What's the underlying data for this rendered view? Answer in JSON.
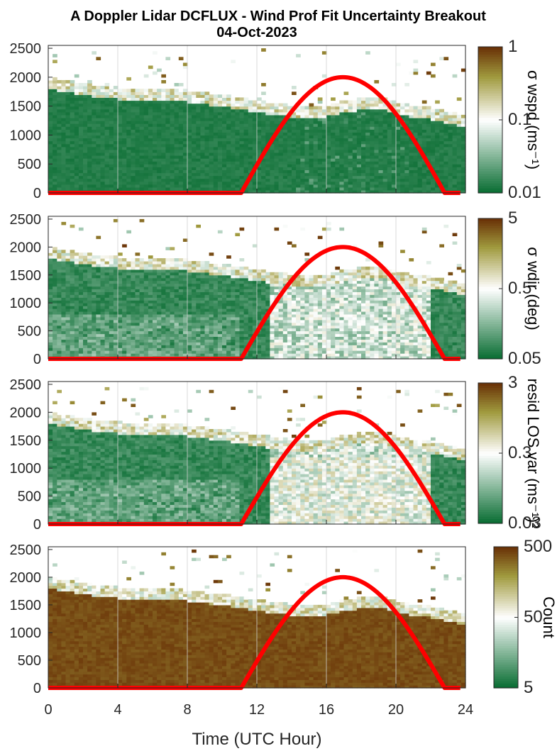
{
  "figure": {
    "title": "A Doppler Lidar DCFLUX - Wind Prof Fit Uncertainty Breakout",
    "subtitle": "04-Oct-2023",
    "xlabel": "Time (UTC Hour)",
    "xticks": [
      "0",
      "4",
      "8",
      "12",
      "16",
      "20",
      "24"
    ]
  },
  "colors": {
    "green_dark": "#0b6e34",
    "white": "#ffffff",
    "olive": "#a09a3e",
    "brown": "#6b3408",
    "sun_curve": "#ff0000"
  },
  "chart_data": [
    {
      "type": "heatmap",
      "name": "sigma_wspd",
      "x": [
        0,
        24
      ],
      "xlim": [
        0,
        24
      ],
      "yticks": [
        "0",
        "500",
        "1000",
        "1500",
        "2000",
        "2500"
      ],
      "ylim": [
        0,
        2550
      ],
      "colorbar": {
        "label": "σ wspd (ms⁻¹)",
        "ticks": [
          "0.01",
          "0.1",
          "1"
        ],
        "scale": "log"
      },
      "boundary_top_m": [
        [
          0,
          1820
        ],
        [
          2,
          1720
        ],
        [
          4,
          1650
        ],
        [
          6,
          1620
        ],
        [
          8,
          1600
        ],
        [
          10,
          1520
        ],
        [
          12,
          1420
        ],
        [
          14,
          1340
        ],
        [
          15,
          1300
        ],
        [
          16,
          1340
        ],
        [
          17,
          1420
        ],
        [
          18,
          1460
        ],
        [
          19,
          1500
        ],
        [
          20,
          1400
        ],
        [
          21,
          1340
        ],
        [
          22,
          1300
        ],
        [
          23,
          1240
        ],
        [
          24,
          1160
        ]
      ],
      "sun_elevation_curve": {
        "zero_until": 11.1,
        "peak_x": 17.0,
        "peak_y": 2000,
        "zero_after": 22.8
      },
      "grid": true
    },
    {
      "type": "heatmap",
      "name": "sigma_wdir",
      "x": [
        0,
        24
      ],
      "xlim": [
        0,
        24
      ],
      "yticks": [
        "0",
        "500",
        "1000",
        "1500",
        "2000",
        "2500"
      ],
      "ylim": [
        0,
        2550
      ],
      "colorbar": {
        "label": "σ wdir (deg)",
        "ticks": [
          "0.05",
          "0.5",
          "5"
        ],
        "scale": "log"
      },
      "grid": true
    },
    {
      "type": "heatmap",
      "name": "resid_los_var",
      "x": [
        0,
        24
      ],
      "xlim": [
        0,
        24
      ],
      "yticks": [
        "0",
        "500",
        "1000",
        "1500",
        "2000",
        "2500"
      ],
      "ylim": [
        0,
        2550
      ],
      "colorbar": {
        "label": "resid LOS var (ms⁻¹)²",
        "ticks": [
          "0.03",
          "0.3",
          "3"
        ],
        "scale": "log"
      },
      "grid": true
    },
    {
      "type": "heatmap",
      "name": "count",
      "x": [
        0,
        24
      ],
      "xlim": [
        0,
        24
      ],
      "yticks": [
        "0",
        "500",
        "1000",
        "1500",
        "2000",
        "2500"
      ],
      "ylim": [
        0,
        2550
      ],
      "colorbar": {
        "label": "Count",
        "ticks": [
          "5",
          "50",
          "500"
        ],
        "scale": "log"
      },
      "grid": true
    }
  ]
}
